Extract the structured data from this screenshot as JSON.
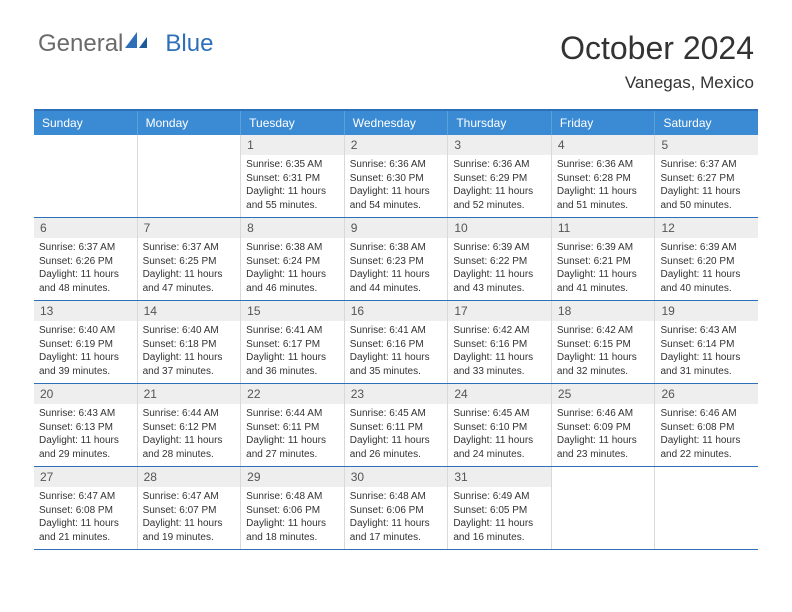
{
  "logo": {
    "text_general": "General",
    "text_blue": "Blue"
  },
  "title": "October 2024",
  "location": "Vanegas, Mexico",
  "colors": {
    "header_bar": "#3b8bd4",
    "accent_line": "#2d6fb8",
    "daynum_bg": "#eeeeee",
    "text": "#333333",
    "logo_grey": "#6a6a6a",
    "logo_blue": "#2d6fb8"
  },
  "day_headers": [
    "Sunday",
    "Monday",
    "Tuesday",
    "Wednesday",
    "Thursday",
    "Friday",
    "Saturday"
  ],
  "weeks": [
    [
      {
        "n": "",
        "sr": "",
        "ss": "",
        "dl": ""
      },
      {
        "n": "",
        "sr": "",
        "ss": "",
        "dl": ""
      },
      {
        "n": "1",
        "sr": "6:35 AM",
        "ss": "6:31 PM",
        "dl": "11 hours and 55 minutes."
      },
      {
        "n": "2",
        "sr": "6:36 AM",
        "ss": "6:30 PM",
        "dl": "11 hours and 54 minutes."
      },
      {
        "n": "3",
        "sr": "6:36 AM",
        "ss": "6:29 PM",
        "dl": "11 hours and 52 minutes."
      },
      {
        "n": "4",
        "sr": "6:36 AM",
        "ss": "6:28 PM",
        "dl": "11 hours and 51 minutes."
      },
      {
        "n": "5",
        "sr": "6:37 AM",
        "ss": "6:27 PM",
        "dl": "11 hours and 50 minutes."
      }
    ],
    [
      {
        "n": "6",
        "sr": "6:37 AM",
        "ss": "6:26 PM",
        "dl": "11 hours and 48 minutes."
      },
      {
        "n": "7",
        "sr": "6:37 AM",
        "ss": "6:25 PM",
        "dl": "11 hours and 47 minutes."
      },
      {
        "n": "8",
        "sr": "6:38 AM",
        "ss": "6:24 PM",
        "dl": "11 hours and 46 minutes."
      },
      {
        "n": "9",
        "sr": "6:38 AM",
        "ss": "6:23 PM",
        "dl": "11 hours and 44 minutes."
      },
      {
        "n": "10",
        "sr": "6:39 AM",
        "ss": "6:22 PM",
        "dl": "11 hours and 43 minutes."
      },
      {
        "n": "11",
        "sr": "6:39 AM",
        "ss": "6:21 PM",
        "dl": "11 hours and 41 minutes."
      },
      {
        "n": "12",
        "sr": "6:39 AM",
        "ss": "6:20 PM",
        "dl": "11 hours and 40 minutes."
      }
    ],
    [
      {
        "n": "13",
        "sr": "6:40 AM",
        "ss": "6:19 PM",
        "dl": "11 hours and 39 minutes."
      },
      {
        "n": "14",
        "sr": "6:40 AM",
        "ss": "6:18 PM",
        "dl": "11 hours and 37 minutes."
      },
      {
        "n": "15",
        "sr": "6:41 AM",
        "ss": "6:17 PM",
        "dl": "11 hours and 36 minutes."
      },
      {
        "n": "16",
        "sr": "6:41 AM",
        "ss": "6:16 PM",
        "dl": "11 hours and 35 minutes."
      },
      {
        "n": "17",
        "sr": "6:42 AM",
        "ss": "6:16 PM",
        "dl": "11 hours and 33 minutes."
      },
      {
        "n": "18",
        "sr": "6:42 AM",
        "ss": "6:15 PM",
        "dl": "11 hours and 32 minutes."
      },
      {
        "n": "19",
        "sr": "6:43 AM",
        "ss": "6:14 PM",
        "dl": "11 hours and 31 minutes."
      }
    ],
    [
      {
        "n": "20",
        "sr": "6:43 AM",
        "ss": "6:13 PM",
        "dl": "11 hours and 29 minutes."
      },
      {
        "n": "21",
        "sr": "6:44 AM",
        "ss": "6:12 PM",
        "dl": "11 hours and 28 minutes."
      },
      {
        "n": "22",
        "sr": "6:44 AM",
        "ss": "6:11 PM",
        "dl": "11 hours and 27 minutes."
      },
      {
        "n": "23",
        "sr": "6:45 AM",
        "ss": "6:11 PM",
        "dl": "11 hours and 26 minutes."
      },
      {
        "n": "24",
        "sr": "6:45 AM",
        "ss": "6:10 PM",
        "dl": "11 hours and 24 minutes."
      },
      {
        "n": "25",
        "sr": "6:46 AM",
        "ss": "6:09 PM",
        "dl": "11 hours and 23 minutes."
      },
      {
        "n": "26",
        "sr": "6:46 AM",
        "ss": "6:08 PM",
        "dl": "11 hours and 22 minutes."
      }
    ],
    [
      {
        "n": "27",
        "sr": "6:47 AM",
        "ss": "6:08 PM",
        "dl": "11 hours and 21 minutes."
      },
      {
        "n": "28",
        "sr": "6:47 AM",
        "ss": "6:07 PM",
        "dl": "11 hours and 19 minutes."
      },
      {
        "n": "29",
        "sr": "6:48 AM",
        "ss": "6:06 PM",
        "dl": "11 hours and 18 minutes."
      },
      {
        "n": "30",
        "sr": "6:48 AM",
        "ss": "6:06 PM",
        "dl": "11 hours and 17 minutes."
      },
      {
        "n": "31",
        "sr": "6:49 AM",
        "ss": "6:05 PM",
        "dl": "11 hours and 16 minutes."
      },
      {
        "n": "",
        "sr": "",
        "ss": "",
        "dl": ""
      },
      {
        "n": "",
        "sr": "",
        "ss": "",
        "dl": ""
      }
    ]
  ],
  "labels": {
    "sunrise": "Sunrise:",
    "sunset": "Sunset:",
    "daylight": "Daylight:"
  }
}
